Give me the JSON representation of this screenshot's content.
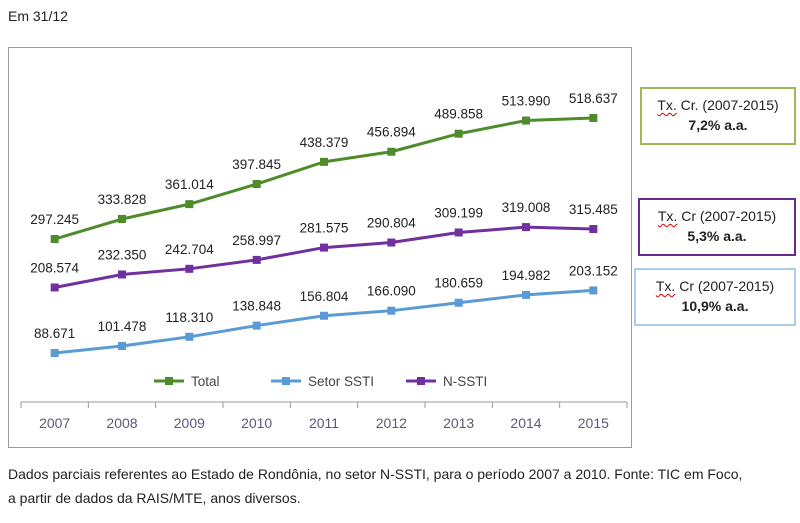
{
  "header": {
    "note": "Em 31/12"
  },
  "chart_data": {
    "type": "line",
    "categories": [
      "2007",
      "2008",
      "2009",
      "2010",
      "2011",
      "2012",
      "2013",
      "2014",
      "2015"
    ],
    "series": [
      {
        "name": "Total",
        "color": "#4f8a2b",
        "values": [
          297245,
          333828,
          361014,
          397845,
          438379,
          456894,
          489858,
          513990,
          518637
        ],
        "labels": [
          "297.245",
          "333.828",
          "361.014",
          "397.845",
          "438.379",
          "456.894",
          "489.858",
          "513.990",
          "518.637"
        ]
      },
      {
        "name": "Setor SSTI",
        "color": "#5b9bd5",
        "values": [
          88671,
          101478,
          118310,
          138848,
          156804,
          166090,
          180659,
          194982,
          203152
        ],
        "labels": [
          "88.671",
          "101.478",
          "118.310",
          "138.848",
          "156.804",
          "166.090",
          "180.659",
          "194.982",
          "203.152"
        ]
      },
      {
        "name": "N-SSTI",
        "color": "#7030a0",
        "values": [
          208574,
          232350,
          242704,
          258997,
          281575,
          290804,
          309199,
          319008,
          315485
        ],
        "labels": [
          "208.574",
          "232.350",
          "242.704",
          "258.997",
          "281.575",
          "290.804",
          "309.199",
          "319.008",
          "315.485"
        ]
      }
    ],
    "ylim": [
      0,
      560000
    ],
    "grid": false,
    "legend": "bottom-inside"
  },
  "side_boxes": {
    "total": {
      "line1": "Tx.",
      "line1b": " Cr. (2007-2015)",
      "value": "7,2%  a.a."
    },
    "nssti": {
      "line1": "Tx.",
      "line1b": " Cr (2007-2015)",
      "value": "5,3% a.a."
    },
    "ssti": {
      "line1": "Tx.",
      "line1b": " Cr (2007-2015)",
      "value": "10,9% a.a."
    }
  },
  "footnote": {
    "line1": "Dados parciais referentes ao Estado de Rondônia, no setor N-SSTI, para o período 2007 a 2010. Fonte: TIC em Foco,",
    "line2": "a partir de dados da RAIS/MTE, anos diversos."
  }
}
